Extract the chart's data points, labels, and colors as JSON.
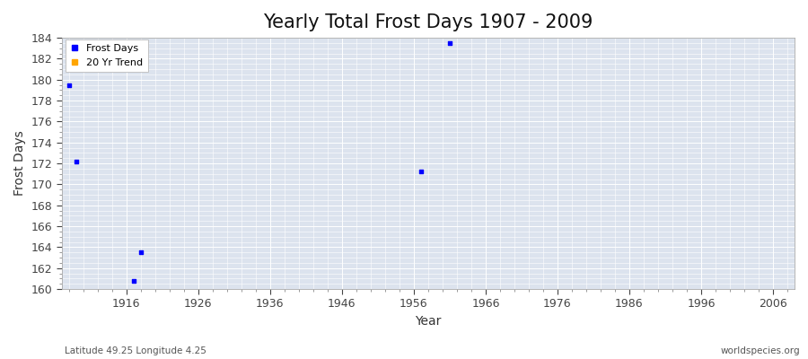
{
  "title": "Yearly Total Frost Days 1907 - 2009",
  "xlabel": "Year",
  "ylabel": "Frost Days",
  "xlim": [
    1907,
    2009
  ],
  "ylim": [
    160,
    184
  ],
  "yticks": [
    160,
    162,
    164,
    166,
    168,
    170,
    172,
    174,
    176,
    178,
    180,
    182,
    184
  ],
  "xticks": [
    1916,
    1926,
    1936,
    1946,
    1956,
    1966,
    1976,
    1986,
    1996,
    2006
  ],
  "frost_days_x": [
    1908,
    1909,
    1917,
    1918,
    1957,
    1961
  ],
  "frost_days_y": [
    179.5,
    172.2,
    160.8,
    163.5,
    171.2,
    183.5
  ],
  "point_color": "#0000ff",
  "trend_color": "#FFA500",
  "fig_bg_color": "#ffffff",
  "plot_bg_color": "#dce3ee",
  "grid_color": "#ffffff",
  "title_fontsize": 15,
  "axis_label_fontsize": 10,
  "tick_fontsize": 9,
  "legend_labels": [
    "Frost Days",
    "20 Yr Trend"
  ],
  "subtitle": "Latitude 49.25 Longitude 4.25",
  "watermark": "worldspecies.org",
  "marker_size": 2.5
}
